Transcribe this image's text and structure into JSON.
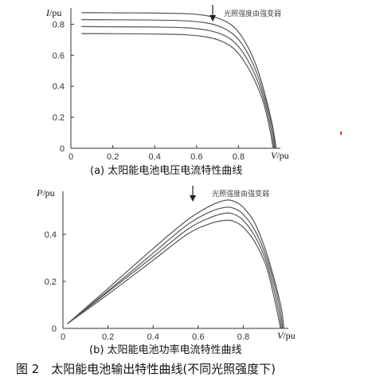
{
  "caption": "图 2　太阳能电池输出特性曲线(不同光照强度下)",
  "chart_data": [
    {
      "type": "line",
      "subcaption": "(a)  太阳能电池电压电流特性曲线",
      "ylabel_var": "I",
      "ylabel_unit": "/pu",
      "xlabel_var": "V",
      "xlabel_unit": "/pu",
      "annotation": "光照强度由强变弱",
      "annotation_x": 0.65,
      "xlim": [
        0,
        1.0
      ],
      "ylim": [
        0,
        0.9
      ],
      "xticks": [
        0,
        0.2,
        0.4,
        0.6,
        0.8
      ],
      "xtick_labels": [
        "0",
        "0.2",
        "0.4",
        "0.6",
        "0.8"
      ],
      "yticks": [
        0,
        0.2,
        0.4,
        0.6,
        0.8
      ],
      "ytick_labels": [
        "0",
        "0.2",
        "0.4",
        "0.6",
        "0.8"
      ],
      "series": [
        {
          "x": [
            0.05,
            0.2,
            0.4,
            0.55,
            0.65,
            0.72,
            0.78,
            0.83,
            0.88,
            0.92,
            0.96,
            0.98
          ],
          "y": [
            0.875,
            0.874,
            0.872,
            0.868,
            0.855,
            0.83,
            0.78,
            0.69,
            0.55,
            0.38,
            0.16,
            0.0
          ]
        },
        {
          "x": [
            0.05,
            0.2,
            0.4,
            0.55,
            0.65,
            0.72,
            0.78,
            0.83,
            0.88,
            0.92,
            0.96,
            0.975
          ],
          "y": [
            0.83,
            0.829,
            0.827,
            0.822,
            0.808,
            0.78,
            0.73,
            0.645,
            0.51,
            0.35,
            0.14,
            0.0
          ]
        },
        {
          "x": [
            0.05,
            0.2,
            0.4,
            0.55,
            0.65,
            0.72,
            0.78,
            0.83,
            0.88,
            0.92,
            0.955,
            0.97
          ],
          "y": [
            0.785,
            0.784,
            0.782,
            0.777,
            0.762,
            0.735,
            0.685,
            0.6,
            0.47,
            0.32,
            0.13,
            0.0
          ]
        },
        {
          "x": [
            0.05,
            0.2,
            0.4,
            0.55,
            0.65,
            0.72,
            0.78,
            0.83,
            0.88,
            0.92,
            0.95,
            0.965
          ],
          "y": [
            0.74,
            0.739,
            0.737,
            0.732,
            0.717,
            0.69,
            0.64,
            0.555,
            0.43,
            0.29,
            0.12,
            0.0
          ]
        }
      ]
    },
    {
      "type": "line",
      "subcaption": "(b)  太阳能电池功率电流特性曲线",
      "ylabel_var": "P",
      "ylabel_unit": "/pu",
      "xlabel_var": "V",
      "xlabel_unit": "/pu",
      "annotation": "光照强度由强变弱",
      "annotation_x": 0.57,
      "xlim": [
        0,
        1.0
      ],
      "ylim": [
        0,
        0.58
      ],
      "xticks": [
        0,
        0.2,
        0.4,
        0.6,
        0.8
      ],
      "xtick_labels": [
        "0",
        "0.2",
        "0.4",
        "0.6",
        "0.8"
      ],
      "yticks": [
        0,
        0.2,
        0.4
      ],
      "ytick_labels": [
        "0",
        "0.2",
        "0.4"
      ],
      "series": [
        {
          "x": [
            0.02,
            0.2,
            0.4,
            0.55,
            0.65,
            0.72,
            0.76,
            0.8,
            0.85,
            0.9,
            0.94,
            0.97,
            0.98
          ],
          "y": [
            0.02,
            0.17,
            0.34,
            0.46,
            0.52,
            0.545,
            0.54,
            0.515,
            0.45,
            0.33,
            0.2,
            0.08,
            0.0
          ]
        },
        {
          "x": [
            0.02,
            0.2,
            0.4,
            0.55,
            0.65,
            0.72,
            0.76,
            0.8,
            0.85,
            0.9,
            0.94,
            0.965,
            0.975
          ],
          "y": [
            0.02,
            0.16,
            0.32,
            0.44,
            0.495,
            0.515,
            0.51,
            0.485,
            0.42,
            0.31,
            0.18,
            0.07,
            0.0
          ]
        },
        {
          "x": [
            0.02,
            0.2,
            0.4,
            0.55,
            0.65,
            0.72,
            0.76,
            0.8,
            0.85,
            0.9,
            0.935,
            0.96,
            0.97
          ],
          "y": [
            0.02,
            0.155,
            0.305,
            0.42,
            0.47,
            0.49,
            0.485,
            0.46,
            0.395,
            0.29,
            0.17,
            0.06,
            0.0
          ]
        },
        {
          "x": [
            0.02,
            0.2,
            0.4,
            0.55,
            0.65,
            0.72,
            0.76,
            0.8,
            0.85,
            0.9,
            0.93,
            0.955,
            0.965
          ],
          "y": [
            0.02,
            0.145,
            0.29,
            0.4,
            0.445,
            0.46,
            0.455,
            0.43,
            0.37,
            0.27,
            0.16,
            0.05,
            0.0
          ]
        }
      ]
    }
  ]
}
